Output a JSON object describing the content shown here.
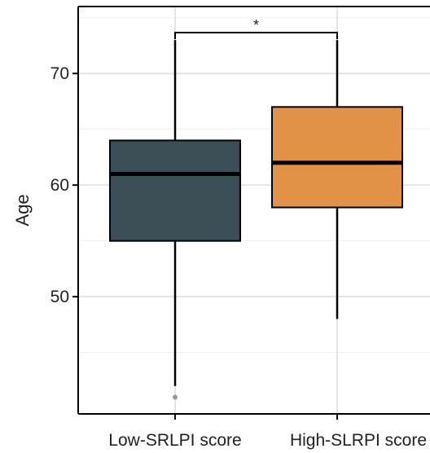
{
  "chart_data": {
    "type": "box",
    "ylabel": "Age",
    "categories": [
      "Low-SRLPI score",
      "High-SLRPI score"
    ],
    "y_ticks": [
      50,
      60,
      70
    ],
    "ylim": [
      39.5,
      76
    ],
    "grid": true,
    "series": [
      {
        "whisker_low": 42,
        "q1": 55,
        "median": 61,
        "q3": 64,
        "whisker_high": 73,
        "outliers": [
          41
        ],
        "fill": "#3b4f56"
      },
      {
        "whisker_low": 48,
        "q1": 58,
        "median": 62,
        "q3": 67,
        "whisker_high": 73,
        "outliers": [],
        "fill": "#e09248"
      }
    ],
    "significance": {
      "between": [
        0,
        1
      ],
      "label": "*"
    }
  }
}
